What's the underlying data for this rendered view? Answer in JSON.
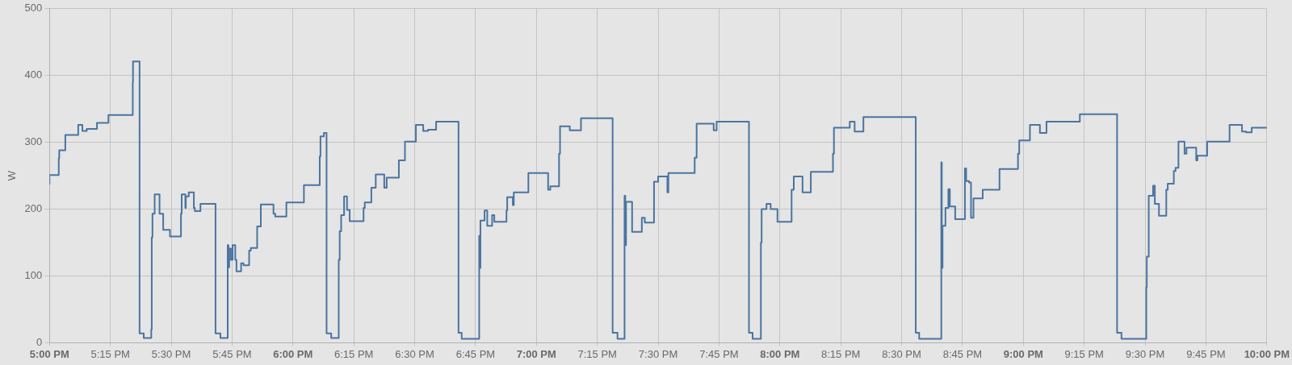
{
  "chart_data": {
    "type": "step",
    "ylabel": "W",
    "grid": true,
    "legend": false,
    "marker": "none",
    "line_style": "solid",
    "xlim": [
      17,
      22
    ],
    "ylim": [
      0,
      500
    ],
    "yticks": [
      0,
      100,
      200,
      300,
      400,
      500
    ],
    "xticks": [
      {
        "value": 17,
        "label": "5:00 PM"
      },
      {
        "value": 17.25,
        "label": "5:15 PM"
      },
      {
        "value": 17.5,
        "label": "5:30 PM"
      },
      {
        "value": 17.75,
        "label": "5:45 PM"
      },
      {
        "value": 18,
        "label": "6:00 PM"
      },
      {
        "value": 18.25,
        "label": "6:15 PM"
      },
      {
        "value": 18.5,
        "label": "6:30 PM"
      },
      {
        "value": 18.75,
        "label": "6:45 PM"
      },
      {
        "value": 19,
        "label": "7:00 PM"
      },
      {
        "value": 19.25,
        "label": "7:15 PM"
      },
      {
        "value": 19.5,
        "label": "7:30 PM"
      },
      {
        "value": 19.75,
        "label": "7:45 PM"
      },
      {
        "value": 20,
        "label": "8:00 PM"
      },
      {
        "value": 20.25,
        "label": "8:15 PM"
      },
      {
        "value": 20.5,
        "label": "8:30 PM"
      },
      {
        "value": 20.75,
        "label": "8:45 PM"
      },
      {
        "value": 21,
        "label": "9:00 PM"
      },
      {
        "value": 21.25,
        "label": "9:15 PM"
      },
      {
        "value": 21.5,
        "label": "9:30 PM"
      },
      {
        "value": 21.75,
        "label": "9:45 PM"
      },
      {
        "value": 22,
        "label": "10:00 PM"
      }
    ],
    "series": [
      {
        "color": "#4a74a0",
        "x": [
          17.0,
          17.038,
          17.04,
          17.065,
          17.118,
          17.135,
          17.153,
          17.195,
          17.242,
          17.342,
          17.343,
          17.37,
          17.372,
          17.387,
          17.39,
          17.418,
          17.42,
          17.423,
          17.432,
          17.452,
          17.467,
          17.495,
          17.54,
          17.543,
          17.558,
          17.56,
          17.572,
          17.593,
          17.597,
          17.62,
          17.682,
          17.683,
          17.702,
          17.705,
          17.732,
          17.735,
          17.738,
          17.745,
          17.752,
          17.763,
          17.768,
          17.787,
          17.797,
          17.82,
          17.827,
          17.853,
          17.868,
          17.92,
          17.927,
          17.973,
          18.045,
          18.11,
          18.113,
          18.127,
          18.138,
          18.14,
          18.157,
          18.16,
          18.188,
          18.192,
          18.198,
          18.21,
          18.222,
          18.233,
          18.29,
          18.295,
          18.322,
          18.34,
          18.375,
          18.385,
          18.435,
          18.46,
          18.505,
          18.535,
          18.555,
          18.588,
          18.68,
          18.682,
          18.693,
          18.695,
          18.765,
          18.767,
          18.77,
          18.787,
          18.798,
          18.818,
          18.827,
          18.877,
          18.88,
          18.903,
          18.907,
          18.967,
          19.048,
          19.057,
          19.093,
          19.097,
          19.137,
          19.183,
          19.313,
          19.315,
          19.333,
          19.335,
          19.362,
          19.365,
          19.368,
          19.393,
          19.433,
          19.445,
          19.483,
          19.5,
          19.538,
          19.542,
          19.65,
          19.658,
          19.728,
          19.74,
          19.873,
          19.875,
          19.888,
          19.893,
          19.922,
          19.925,
          19.945,
          19.962,
          19.99,
          20.048,
          20.057,
          20.093,
          20.098,
          20.127,
          20.218,
          20.222,
          20.287,
          20.307,
          20.343,
          20.558,
          20.56,
          20.572,
          20.573,
          20.663,
          20.665,
          20.668,
          20.68,
          20.692,
          20.698,
          20.72,
          20.76,
          20.765,
          20.777,
          20.785,
          20.795,
          20.833,
          20.902,
          20.978,
          20.983,
          21.027,
          21.068,
          21.095,
          21.232,
          21.385,
          21.387,
          21.403,
          21.405,
          21.505,
          21.507,
          21.515,
          21.533,
          21.54,
          21.557,
          21.587,
          21.593,
          21.618,
          21.625,
          21.637,
          21.662,
          21.67,
          21.71,
          21.715,
          21.755,
          21.847,
          21.898,
          21.915,
          21.938,
          22.0
        ],
        "values": [
          237,
          251,
          276,
          288,
          311,
          326,
          317,
          320,
          329,
          341,
          390,
          421,
          14,
          14,
          7,
          7,
          20,
          158,
          193,
          222,
          193,
          169,
          159,
          193,
          222,
          202,
          219,
          225,
          202,
          197,
          208,
          14,
          14,
          7,
          7,
          146,
          113,
          141,
          124,
          146,
          124,
          107,
          119,
          116,
          138,
          142,
          174,
          207,
          193,
          189,
          210,
          236,
          279,
          309,
          314,
          14,
          14,
          7,
          7,
          124,
          167,
          191,
          219,
          199,
          182,
          202,
          210,
          232,
          252,
          232,
          247,
          273,
          301,
          326,
          317,
          319,
          331,
          15,
          15,
          6,
          6,
          160,
          112,
          183,
          198,
          175,
          191,
          181,
          198,
          218,
          206,
          225,
          254,
          229,
          234,
          283,
          324,
          318,
          336,
          15,
          15,
          6,
          6,
          220,
          146,
          211,
          166,
          187,
          180,
          241,
          249,
          225,
          254,
          277,
          328,
          318,
          331,
          15,
          15,
          6,
          6,
          150,
          200,
          208,
          200,
          181,
          229,
          249,
          225,
          225,
          256,
          283,
          322,
          331,
          316,
          338,
          15,
          15,
          6,
          6,
          270,
          112,
          175,
          202,
          230,
          204,
          185,
          261,
          242,
          240,
          187,
          216,
          229,
          260,
          283,
          303,
          326,
          314,
          331,
          342,
          15,
          15,
          6,
          6,
          83,
          129,
          220,
          235,
          208,
          190,
          229,
          238,
          257,
          262,
          301,
          283,
          292,
          273,
          280,
          301,
          326,
          316,
          315,
          322
        ]
      }
    ]
  }
}
